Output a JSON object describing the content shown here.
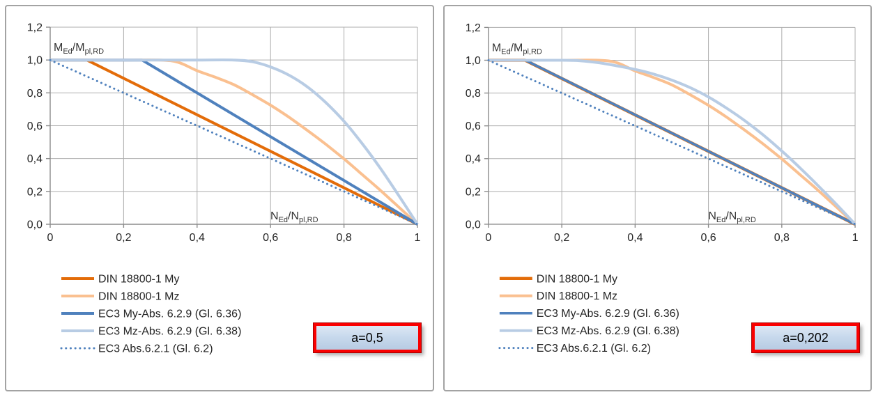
{
  "page": {
    "background": "#ffffff"
  },
  "colors": {
    "din_my": "#E36C09",
    "din_mz": "#FAC090",
    "ec3_my": "#4F81BD",
    "ec3_mz": "#B8CCE4",
    "ec3_dotted": "#4F81BD",
    "annotation_border": "#F90000",
    "annotation_fill": "#C6D8EC",
    "gridline": "#ADADAD"
  },
  "chart_data": [
    {
      "type": "line",
      "title": "",
      "annotation": "a=0,5",
      "xlabel": "N_Ed/N_pl,RD",
      "ylabel": "M_Ed/M_pl,RD",
      "xlabel_parts": [
        "N",
        "Ed",
        "/N",
        "pl,RD"
      ],
      "ylabel_parts": [
        "M",
        "Ed",
        "/M",
        "pl,RD"
      ],
      "xlim": [
        0,
        1
      ],
      "ylim": [
        0,
        1.2
      ],
      "grid": true,
      "legend_position": "bottom-left",
      "x_tick_vals": [
        0,
        0.2,
        0.4,
        0.6,
        0.8,
        1
      ],
      "x_tick_labels": [
        "0",
        "0,2",
        "0,4",
        "0,6",
        "0,8",
        "1"
      ],
      "y_tick_vals": [
        0,
        0.2,
        0.4,
        0.6,
        0.8,
        1.0,
        1.2
      ],
      "y_tick_labels": [
        "0,0",
        "0,2",
        "0,4",
        "0,6",
        "0,8",
        "1,0",
        "1,2"
      ],
      "series": [
        {
          "name": "DIN 18800-1 My",
          "color": "#E36C09",
          "width": 4,
          "dash": null,
          "smooth": false,
          "points": [
            [
              0,
              1
            ],
            [
              0.1,
              1
            ],
            [
              1,
              0
            ]
          ]
        },
        {
          "name": "DIN 18800-1 Mz",
          "color": "#FAC090",
          "width": 4,
          "dash": null,
          "smooth": true,
          "points": [
            [
              0,
              1
            ],
            [
              0.1,
              1
            ],
            [
              0.2,
              1
            ],
            [
              0.3,
              1
            ],
            [
              0.35,
              0.985
            ],
            [
              0.4,
              0.935
            ],
            [
              0.45,
              0.895
            ],
            [
              0.5,
              0.85
            ],
            [
              0.55,
              0.79
            ],
            [
              0.6,
              0.725
            ],
            [
              0.65,
              0.652
            ],
            [
              0.7,
              0.572
            ],
            [
              0.75,
              0.488
            ],
            [
              0.8,
              0.398
            ],
            [
              0.85,
              0.302
            ],
            [
              0.9,
              0.205
            ],
            [
              0.95,
              0.103
            ],
            [
              1,
              0
            ]
          ]
        },
        {
          "name": "EC3 My-Abs. 6.2.9 (Gl. 6.36)",
          "color": "#4F81BD",
          "width": 4,
          "dash": null,
          "smooth": false,
          "points": [
            [
              0,
              1
            ],
            [
              0.25,
              1
            ],
            [
              1,
              0
            ]
          ]
        },
        {
          "name": "EC3 Mz-Abs. 6.2.9 (Gl. 6.38)",
          "color": "#B8CCE4",
          "width": 4,
          "dash": null,
          "smooth": true,
          "points": [
            [
              0,
              1
            ],
            [
              0.1,
              1
            ],
            [
              0.2,
              1
            ],
            [
              0.3,
              1
            ],
            [
              0.4,
              1
            ],
            [
              0.5,
              1
            ],
            [
              0.55,
              0.99
            ],
            [
              0.6,
              0.958
            ],
            [
              0.65,
              0.908
            ],
            [
              0.7,
              0.837
            ],
            [
              0.75,
              0.742
            ],
            [
              0.8,
              0.627
            ],
            [
              0.85,
              0.49
            ],
            [
              0.9,
              0.338
            ],
            [
              0.95,
              0.172
            ],
            [
              1,
              0
            ]
          ]
        },
        {
          "name": "EC3 Abs.6.2.1 (Gl. 6.2)",
          "color": "#4F81BD",
          "width": 3,
          "dash": "dot",
          "smooth": false,
          "points": [
            [
              0,
              1
            ],
            [
              1,
              0
            ]
          ]
        }
      ]
    },
    {
      "type": "line",
      "title": "",
      "annotation": "a=0,202",
      "xlabel": "N_Ed/N_pl,RD",
      "ylabel": "M_Ed/M_pl,RD",
      "xlabel_parts": [
        "N",
        "Ed",
        "/N",
        "pl,RD"
      ],
      "ylabel_parts": [
        "M",
        "Ed",
        "/M",
        "pl,RD"
      ],
      "xlim": [
        0,
        1
      ],
      "ylim": [
        0,
        1.2
      ],
      "grid": true,
      "legend_position": "bottom-left",
      "x_tick_vals": [
        0,
        0.2,
        0.4,
        0.6,
        0.8,
        1
      ],
      "x_tick_labels": [
        "0",
        "0,2",
        "0,4",
        "0,6",
        "0,8",
        "1"
      ],
      "y_tick_vals": [
        0,
        0.2,
        0.4,
        0.6,
        0.8,
        1.0,
        1.2
      ],
      "y_tick_labels": [
        "0,0",
        "0,2",
        "0,4",
        "0,6",
        "0,8",
        "1,0",
        "1,2"
      ],
      "series": [
        {
          "name": "DIN 18800-1 My",
          "color": "#E36C09",
          "width": 4.5,
          "dash": null,
          "smooth": false,
          "points": [
            [
              0,
              1
            ],
            [
              0.1,
              1
            ],
            [
              1,
              0
            ]
          ]
        },
        {
          "name": "DIN 18800-1 Mz",
          "color": "#FAC090",
          "width": 4,
          "dash": null,
          "smooth": true,
          "points": [
            [
              0,
              1
            ],
            [
              0.1,
              1
            ],
            [
              0.2,
              1
            ],
            [
              0.3,
              1
            ],
            [
              0.35,
              0.985
            ],
            [
              0.4,
              0.935
            ],
            [
              0.45,
              0.895
            ],
            [
              0.5,
              0.85
            ],
            [
              0.55,
              0.79
            ],
            [
              0.6,
              0.725
            ],
            [
              0.65,
              0.652
            ],
            [
              0.7,
              0.572
            ],
            [
              0.75,
              0.488
            ],
            [
              0.8,
              0.398
            ],
            [
              0.85,
              0.302
            ],
            [
              0.9,
              0.205
            ],
            [
              0.95,
              0.103
            ],
            [
              1,
              0
            ]
          ]
        },
        {
          "name": "EC3 My-Abs. 6.2.9 (Gl. 6.36)",
          "color": "#4F81BD",
          "width": 3.5,
          "dash": null,
          "smooth": false,
          "points": [
            [
              0,
              1
            ],
            [
              0.101,
              1
            ],
            [
              1,
              0
            ]
          ]
        },
        {
          "name": "EC3 Mz-Abs. 6.2.9 (Gl. 6.38)",
          "color": "#B8CCE4",
          "width": 4,
          "dash": null,
          "smooth": true,
          "points": [
            [
              0,
              1
            ],
            [
              0.1,
              1
            ],
            [
              0.2,
              1
            ],
            [
              0.25,
              0.997
            ],
            [
              0.3,
              0.985
            ],
            [
              0.35,
              0.966
            ],
            [
              0.4,
              0.944
            ],
            [
              0.45,
              0.916
            ],
            [
              0.5,
              0.879
            ],
            [
              0.55,
              0.833
            ],
            [
              0.6,
              0.776
            ],
            [
              0.65,
              0.707
            ],
            [
              0.7,
              0.63
            ],
            [
              0.75,
              0.543
            ],
            [
              0.8,
              0.447
            ],
            [
              0.85,
              0.343
            ],
            [
              0.9,
              0.233
            ],
            [
              0.95,
              0.119
            ],
            [
              1,
              0
            ]
          ]
        },
        {
          "name": "EC3 Abs.6.2.1 (Gl. 6.2)",
          "color": "#4F81BD",
          "width": 3,
          "dash": "dot",
          "smooth": false,
          "points": [
            [
              0,
              1
            ],
            [
              1,
              0
            ]
          ]
        }
      ]
    }
  ]
}
